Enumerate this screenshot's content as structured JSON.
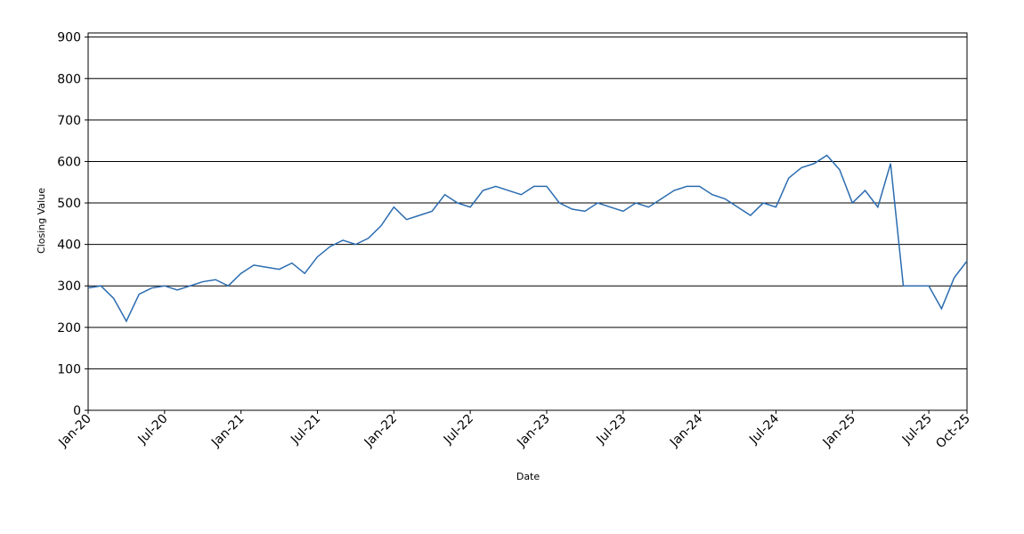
{
  "chart_data": {
    "type": "line",
    "x_label": "Date",
    "y_label": "Closing Value",
    "x": [
      "2020-01",
      "2020-02",
      "2020-03",
      "2020-04",
      "2020-05",
      "2020-06",
      "2020-07",
      "2020-08",
      "2020-09",
      "2020-10",
      "2020-11",
      "2020-12",
      "2021-01",
      "2021-02",
      "2021-03",
      "2021-04",
      "2021-05",
      "2021-06",
      "2021-07",
      "2021-08",
      "2021-09",
      "2021-10",
      "2021-11",
      "2021-12",
      "2022-01",
      "2022-02",
      "2022-03",
      "2022-04",
      "2022-05",
      "2022-06",
      "2022-07",
      "2022-08",
      "2022-09",
      "2022-10",
      "2022-11",
      "2022-12",
      "2023-01",
      "2023-02",
      "2023-03",
      "2023-04",
      "2023-05",
      "2023-06",
      "2023-07",
      "2023-08",
      "2023-09",
      "2023-10",
      "2023-11",
      "2023-12",
      "2024-01",
      "2024-02",
      "2024-03",
      "2024-04",
      "2024-05",
      "2024-06",
      "2024-07",
      "2024-08",
      "2024-09",
      "2024-10",
      "2024-11",
      "2024-12",
      "2025-01",
      "2025-02",
      "2025-03",
      "2025-04",
      "2025-05",
      "2025-06",
      "2025-07",
      "2025-08",
      "2025-09",
      "2025-10"
    ],
    "series": [
      {
        "name": "Closing Value",
        "color": "#2b6cb0",
        "values": [
          295,
          300,
          270,
          215,
          280,
          295,
          300,
          290,
          300,
          310,
          315,
          300,
          330,
          350,
          345,
          340,
          355,
          330,
          370,
          395,
          410,
          400,
          415,
          445,
          490,
          460,
          470,
          480,
          520,
          500,
          490,
          530,
          540,
          530,
          520,
          540,
          540,
          500,
          485,
          480,
          500,
          490,
          480,
          500,
          490,
          510,
          530,
          540,
          540,
          520,
          510,
          490,
          470,
          500,
          490,
          560,
          585,
          595,
          615,
          580,
          500,
          530,
          490,
          595,
          300,
          300,
          300,
          245,
          320,
          360
        ]
      }
    ],
    "xlim": [
      "2020-01",
      "2025-10"
    ],
    "xticks": [
      {
        "value": "2020-01",
        "label": "Jan-20"
      },
      {
        "value": "2020-07",
        "label": "Jul-20"
      },
      {
        "value": "2021-01",
        "label": "Jan-21"
      },
      {
        "value": "2021-07",
        "label": "Jul-21"
      },
      {
        "value": "2022-01",
        "label": "Jan-22"
      },
      {
        "value": "2022-07",
        "label": "Jul-22"
      },
      {
        "value": "2023-01",
        "label": "Jan-23"
      },
      {
        "value": "2023-07",
        "label": "Jul-23"
      },
      {
        "value": "2024-01",
        "label": "Jan-24"
      },
      {
        "value": "2024-07",
        "label": "Jul-24"
      },
      {
        "value": "2025-01",
        "label": "Jan-25"
      },
      {
        "value": "2025-07",
        "label": "Jul-25"
      },
      {
        "value": "2025-10",
        "label": "Oct-25"
      }
    ],
    "ylim": [
      0,
      910
    ],
    "yticks": [
      0,
      100,
      200,
      300,
      400,
      500,
      600,
      700,
      800,
      900
    ],
    "grid": true
  }
}
